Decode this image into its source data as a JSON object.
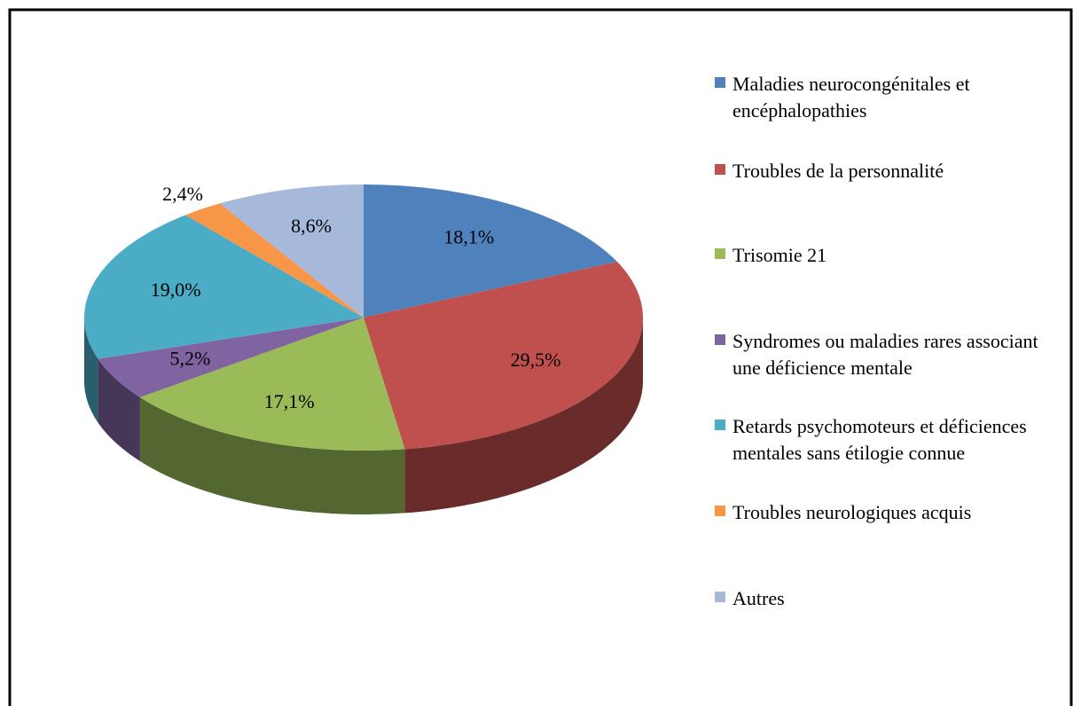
{
  "chart_data": {
    "type": "pie3d",
    "categories": [
      "Maladies neurocongénitales et encéphalopathies",
      "Troubles de la personnalité",
      "Trisomie 21",
      "Syndromes ou maladies rares associant une déficience mentale",
      "Retards psychomoteurs et déficiences mentales sans étilogie connue",
      "Troubles neurologiques acquis",
      "Autres"
    ],
    "values": [
      18.1,
      29.5,
      17.1,
      5.2,
      19.0,
      2.4,
      8.6
    ],
    "value_labels": [
      "18,1%",
      "29,5%",
      "17,1%",
      "5,2%",
      "19,0%",
      "2,4%",
      "8,6%"
    ],
    "colors": [
      "#4f81bd",
      "#c0504d",
      "#9bbb59",
      "#8064a2",
      "#4bacc6",
      "#f79646",
      "#a7b9db"
    ],
    "legend": "right"
  }
}
